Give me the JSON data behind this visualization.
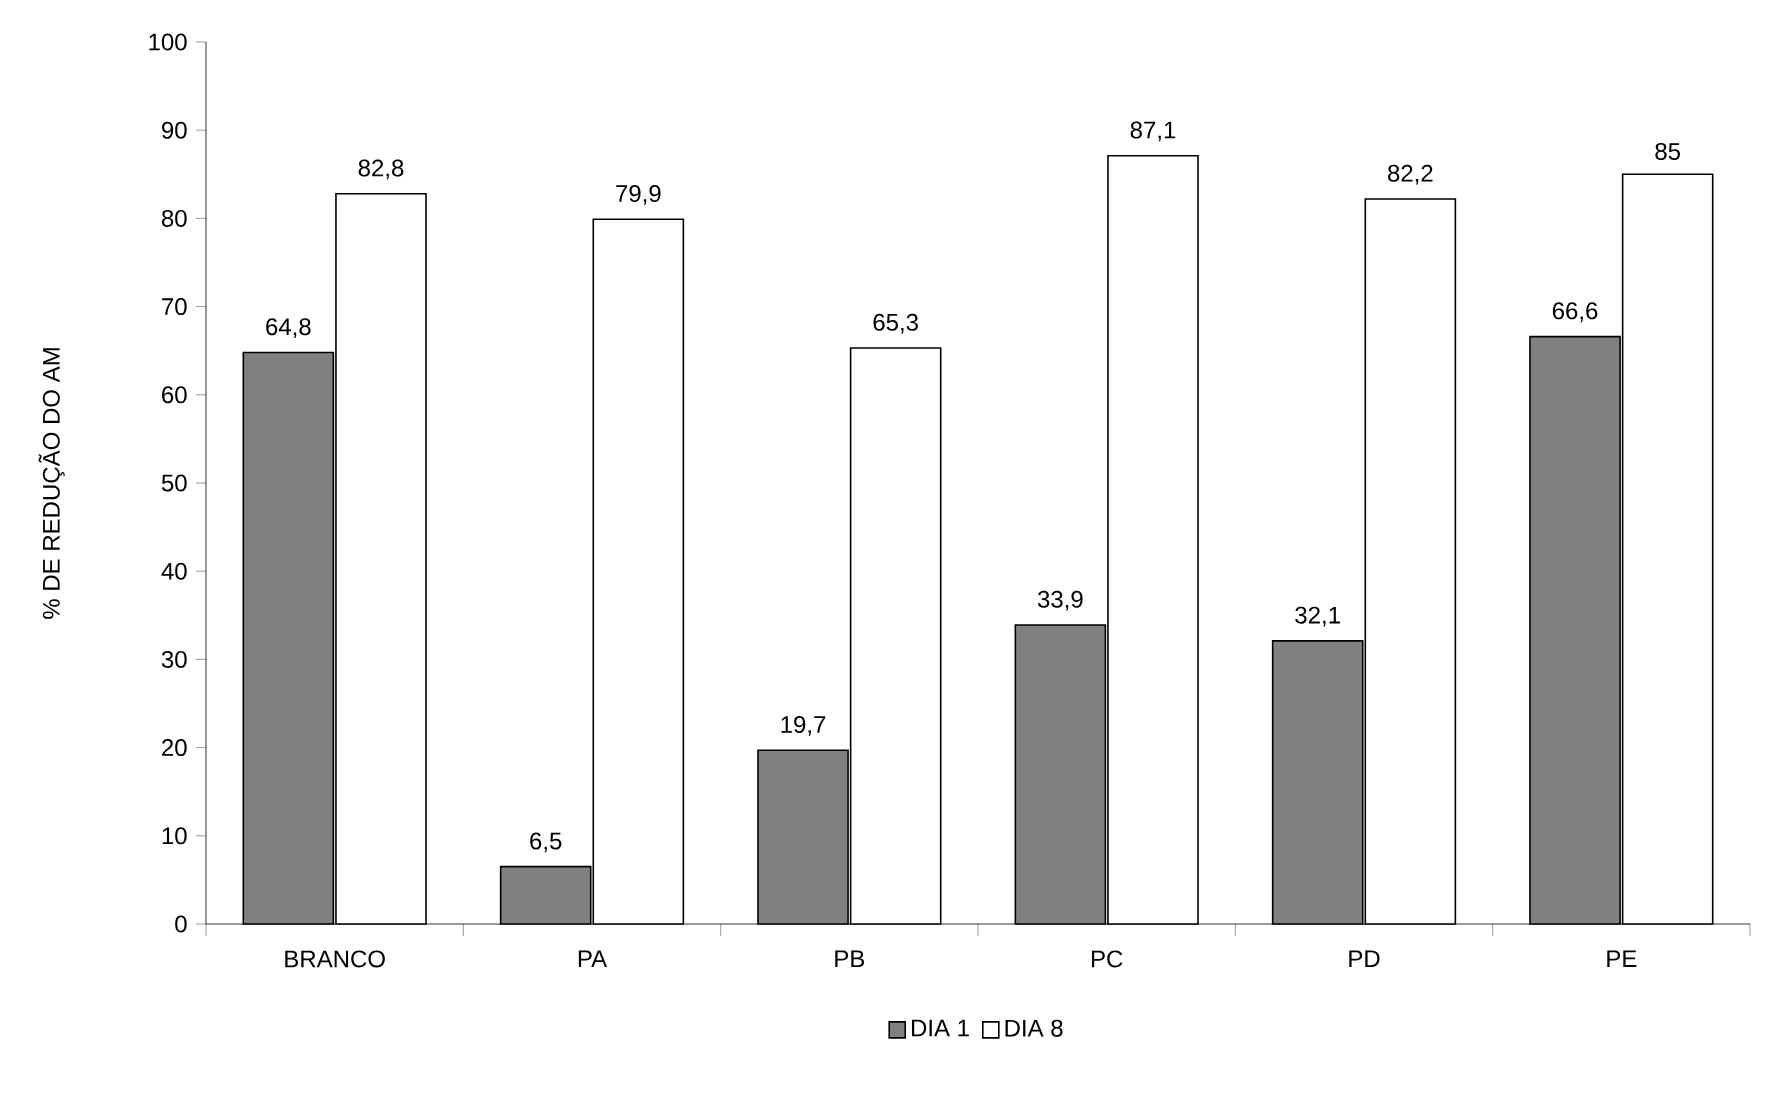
{
  "chart_data": {
    "type": "bar",
    "ylabel": "% DE REDUÇÃO DO AM",
    "categories": [
      "BRANCO",
      "PA",
      "PB",
      "PC",
      "PD",
      "PE"
    ],
    "series": [
      {
        "name": "DIA 1",
        "color": "#808080",
        "values": [
          64.8,
          6.5,
          19.7,
          33.9,
          32.1,
          66.6
        ],
        "value_labels": [
          "64,8",
          "6,5",
          "19,7",
          "33,9",
          "32,1",
          "66,6"
        ]
      },
      {
        "name": "DIA 8",
        "color": "#ffffff",
        "values": [
          82.8,
          79.9,
          65.3,
          87.1,
          82.2,
          85
        ],
        "value_labels": [
          "82,8",
          "79,9",
          "65,3",
          "87,1",
          "82,2",
          "85"
        ]
      }
    ],
    "ylim": [
      0,
      100
    ],
    "yticks": [
      0,
      10,
      20,
      30,
      40,
      50,
      60,
      70,
      80,
      90,
      100
    ],
    "grid": false,
    "legend": "bottom"
  }
}
